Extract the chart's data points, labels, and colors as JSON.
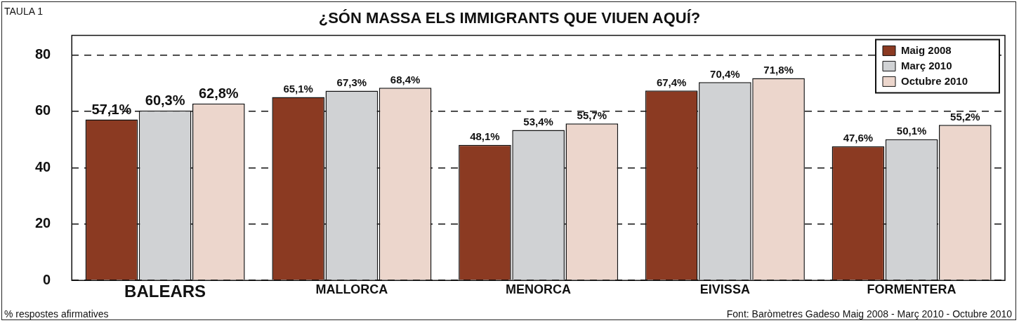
{
  "chart_data": {
    "type": "bar",
    "title": "¿SÓN MASSA ELS IMMIGRANTS QUE VIUEN AQUÍ?",
    "categories": [
      "BALEARS",
      "MALLORCA",
      "MENORCA",
      "EIVISSA",
      "FORMENTERA"
    ],
    "series": [
      {
        "name": "Maig 2008",
        "color": "#8b3a22",
        "values": [
          57.1,
          65.1,
          48.1,
          67.4,
          47.6
        ],
        "value_labels": [
          "57,1%",
          "65,1%",
          "48,1%",
          "67,4%",
          "47,6%"
        ]
      },
      {
        "name": "Març 2010",
        "color": "#d0d2d4",
        "values": [
          60.3,
          67.3,
          53.4,
          70.4,
          50.1
        ],
        "value_labels": [
          "60,3%",
          "67,3%",
          "53,4%",
          "70,4%",
          "50,1%"
        ]
      },
      {
        "name": "Octubre 2010",
        "color": "#ecd6cc",
        "values": [
          62.8,
          68.4,
          55.7,
          71.8,
          55.2
        ],
        "value_labels": [
          "62,8%",
          "68,4%",
          "55,7%",
          "71,8%",
          "55,2%"
        ]
      }
    ],
    "ylim": [
      0,
      87
    ],
    "yticks": [
      0,
      20,
      40,
      60,
      80
    ],
    "grid": "y",
    "legend": "top right",
    "annotations": [
      "TAULA 1",
      "% respostes afirmatives",
      "Font: Baròmetres Gadeso Maig 2008 - Març 2010 - Octubre 2010"
    ]
  }
}
